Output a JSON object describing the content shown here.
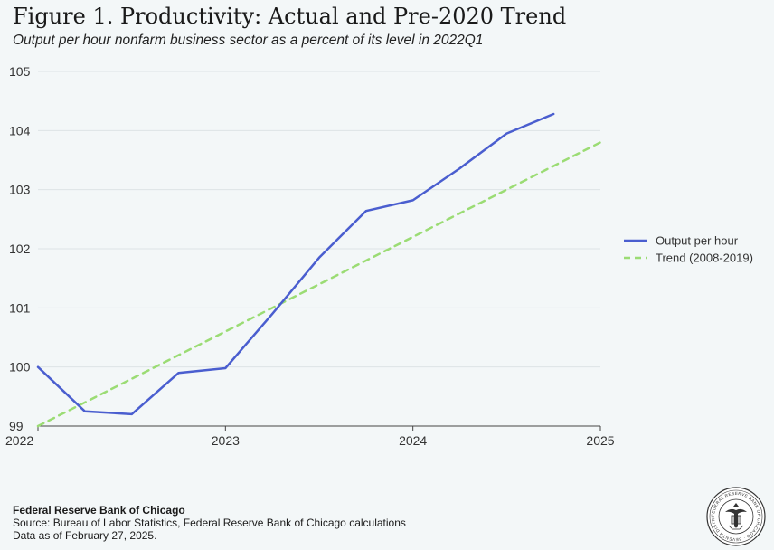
{
  "header": {
    "title": "Figure 1. Productivity: Actual and Pre-2020 Trend",
    "subtitle": "Output per hour nonfarm business sector as a percent of its level in 2022Q1"
  },
  "chart_data": {
    "type": "line",
    "x_tick_labels": [
      "2022",
      "2023",
      "2024",
      "2025"
    ],
    "y_tick_labels": [
      "99",
      "100",
      "101",
      "102",
      "103",
      "104",
      "105"
    ],
    "xlim": [
      2022,
      2025
    ],
    "ylim": [
      99,
      105
    ],
    "grid": "horizontal",
    "legend_position": "right",
    "series": [
      {
        "name": "Output per hour",
        "style": "solid",
        "color": "#4a5ecf",
        "x": [
          2022.0,
          2022.25,
          2022.5,
          2022.75,
          2023.0,
          2023.25,
          2023.5,
          2023.75,
          2024.0,
          2024.25,
          2024.5,
          2024.75
        ],
        "y": [
          100.0,
          99.25,
          99.2,
          99.9,
          99.98,
          100.9,
          101.85,
          102.64,
          102.82,
          103.36,
          103.95,
          104.28
        ]
      },
      {
        "name": "Trend (2008-2019)",
        "style": "dashed",
        "color": "#9bdc74",
        "x": [
          2022.0,
          2025.0
        ],
        "y": [
          99.0,
          103.8
        ]
      }
    ]
  },
  "footer": {
    "org": "Federal Reserve Bank of Chicago",
    "source": "Source: Bureau of Labor Statistics, Federal Reserve Bank of Chicago calculations",
    "date_note": "Data as of February 27, 2025."
  },
  "seal": {
    "ring_text": "FEDERAL RESERVE BANK OF CHICAGO · SEVENTH DISTRICT ·",
    "icon": "federal-reserve-seal-icon"
  }
}
